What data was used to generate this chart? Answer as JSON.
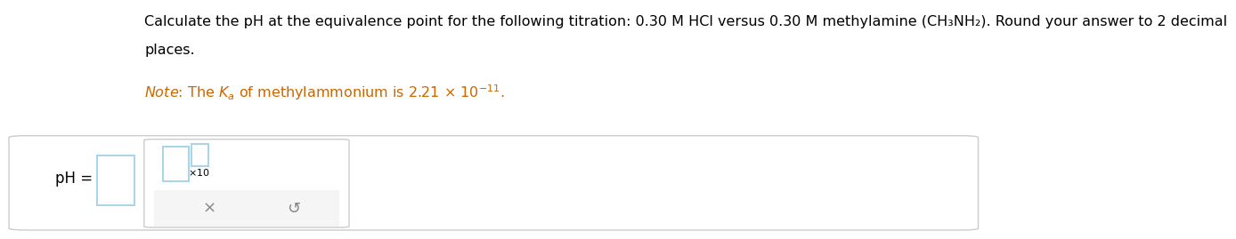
{
  "bg_color": "#ffffff",
  "text_color": "#000000",
  "note_color": "#cc6600",
  "line1": "Calculate the pH at the equivalence point for the following titration: 0.30 M HCl versus 0.30 M methylamine (CH₃NH₂). Round your answer to 2 decimal",
  "line2": "places.",
  "note_line": "Note: The Kₐ of methylammonium is 2.21 × 10⁻¹¹.",
  "ph_label": "pH =",
  "box_border_color": "#aad4e8",
  "panel_bg": "#f5f5f5",
  "panel_border": "#cccccc",
  "inner_box_bg": "#ffffff",
  "inner_box_border": "#aad4e8",
  "font_size_main": 11.5,
  "font_size_note": 11.5
}
